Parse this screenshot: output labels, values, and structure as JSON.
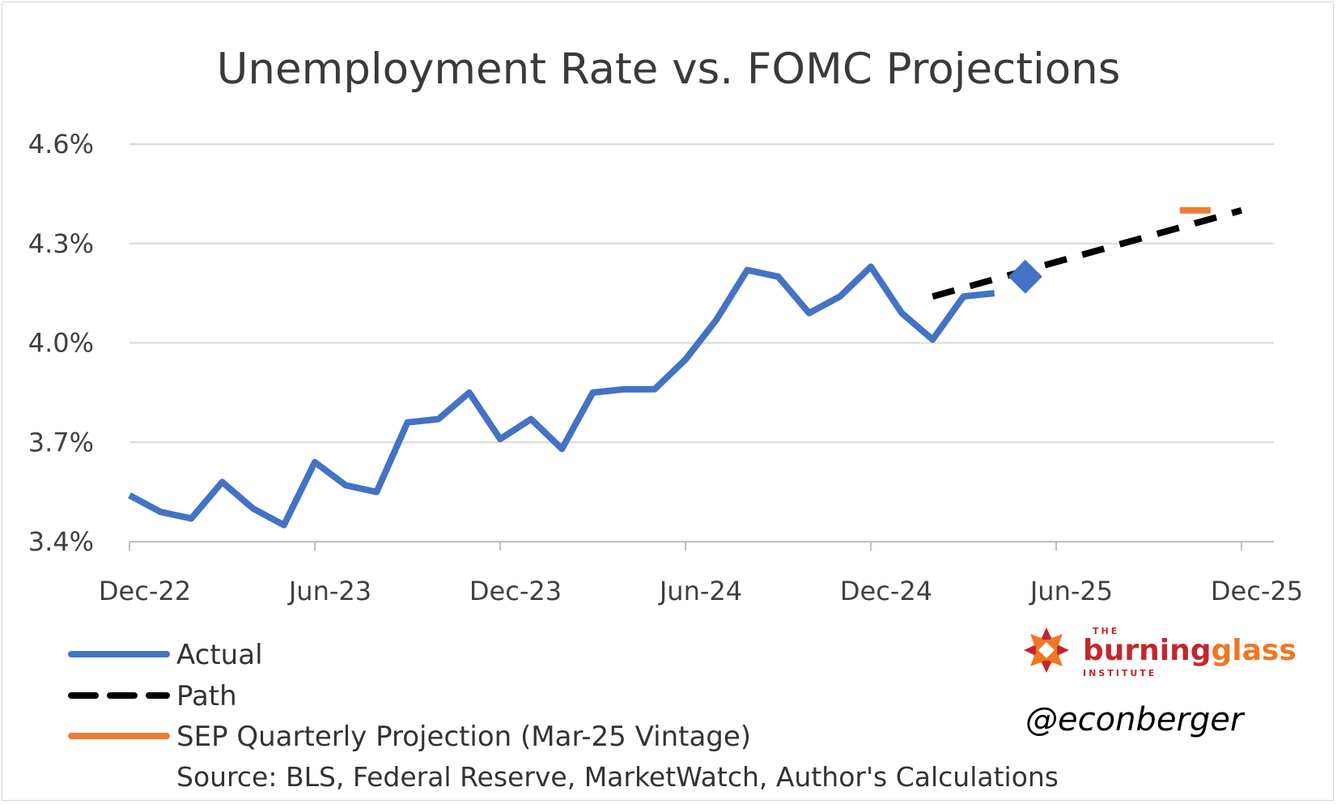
{
  "chart_data": {
    "type": "line",
    "title": "Unemployment Rate vs. FOMC Projections",
    "xlabel": "",
    "ylabel": "",
    "ylim": [
      3.4,
      4.6
    ],
    "y_ticks": [
      "3.4%",
      "3.7%",
      "4.0%",
      "4.3%",
      "4.6%"
    ],
    "y_tick_values": [
      3.4,
      3.7,
      4.0,
      4.3,
      4.6
    ],
    "x_tick_labels": [
      "Dec-22",
      "Jun-23",
      "Dec-23",
      "Jun-24",
      "Dec-24",
      "Jun-25",
      "Dec-25"
    ],
    "x_range_months": [
      "2022-12",
      "2025-12"
    ],
    "grid": true,
    "legend_position": "bottom-left",
    "series": [
      {
        "name": "Actual",
        "color": "#4472c4",
        "style": "solid",
        "x": [
          "2022-12",
          "2023-01",
          "2023-02",
          "2023-03",
          "2023-04",
          "2023-05",
          "2023-06",
          "2023-07",
          "2023-08",
          "2023-09",
          "2023-10",
          "2023-11",
          "2023-12",
          "2024-01",
          "2024-02",
          "2024-03",
          "2024-04",
          "2024-05",
          "2024-06",
          "2024-07",
          "2024-08",
          "2024-09",
          "2024-10",
          "2024-11",
          "2024-12",
          "2025-01",
          "2025-02",
          "2025-03",
          "2025-04"
        ],
        "values": [
          3.54,
          3.49,
          3.47,
          3.58,
          3.5,
          3.45,
          3.64,
          3.57,
          3.55,
          3.76,
          3.77,
          3.85,
          3.71,
          3.77,
          3.68,
          3.85,
          3.86,
          3.86,
          3.95,
          4.07,
          4.22,
          4.2,
          4.09,
          4.14,
          4.23,
          4.09,
          4.01,
          4.14,
          4.15
        ]
      },
      {
        "name": "Path",
        "color": "#000000",
        "style": "dashed",
        "x": [
          "2025-02",
          "2025-12"
        ],
        "values": [
          4.14,
          4.4
        ]
      },
      {
        "name": "SEP Quarterly Projection (Mar-25 Vintage)",
        "color": "#ed7d31",
        "style": "solid",
        "x": [
          "2025-10",
          "2025-11"
        ],
        "values": [
          4.4,
          4.4
        ]
      }
    ],
    "markers": [
      {
        "series": "Actual",
        "shape": "diamond",
        "x": "2025-05",
        "value": 4.2,
        "color": "#4472c4"
      }
    ]
  },
  "legend": {
    "items": [
      {
        "label": "Actual",
        "color": "#4472c4",
        "style": "solid"
      },
      {
        "label": "Path",
        "color": "#000000",
        "style": "dashed"
      },
      {
        "label": "SEP Quarterly Projection (Mar-25 Vintage)",
        "color": "#ed7d31",
        "style": "solid"
      }
    ]
  },
  "source": "Source: BLS, Federal Reserve, MarketWatch, Author's Calculations",
  "handle": "@econberger",
  "logo": {
    "top": "THE",
    "word1": "burning",
    "word2": "glass",
    "bottom": "INSTITUTE",
    "color1": "#c0282d",
    "color2": "#ef7622"
  }
}
